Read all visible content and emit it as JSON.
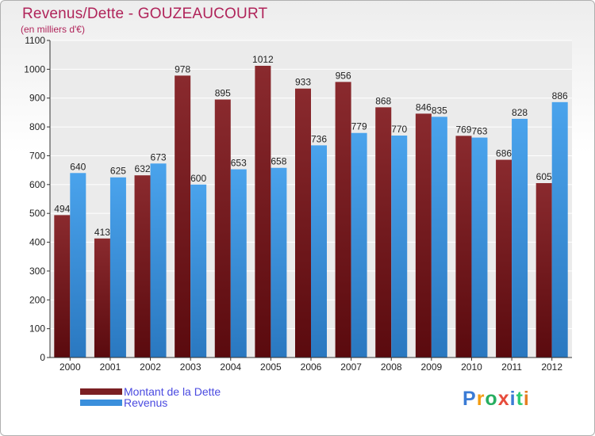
{
  "header": {
    "title": "Revenus/Dette - GOUZEAUCOURT",
    "subtitle": "(en milliers d'€)"
  },
  "legend": {
    "items": [
      {
        "label": "Montant de la Dette",
        "color": "#7a1f23"
      },
      {
        "label": "Revenus",
        "color": "#3a8fdc"
      }
    ]
  },
  "logo": {
    "text": "Proxiti",
    "colors": [
      "#3a7bd5",
      "#f39c12",
      "#27ae60",
      "#e74c3c",
      "#3a7bd5",
      "#2ecc71",
      "#e67e22"
    ]
  },
  "chart_data": {
    "type": "bar",
    "categories": [
      "2000",
      "2001",
      "2002",
      "2003",
      "2004",
      "2005",
      "2006",
      "2007",
      "2008",
      "2009",
      "2010",
      "2011",
      "2012"
    ],
    "series": [
      {
        "name": "Montant de la Dette",
        "color": "#7a1f23",
        "values": [
          494,
          413,
          632,
          978,
          895,
          1012,
          933,
          956,
          868,
          846,
          769,
          686,
          605
        ]
      },
      {
        "name": "Revenus",
        "color": "#3a8fdc",
        "values": [
          640,
          625,
          673,
          600,
          653,
          658,
          736,
          779,
          770,
          835,
          763,
          828,
          886
        ]
      }
    ],
    "yticks": [
      0,
      100,
      200,
      300,
      400,
      500,
      600,
      700,
      800,
      900,
      1000,
      1100
    ],
    "ylim": [
      0,
      1100
    ],
    "grid": true,
    "legend_position": "bottom-left"
  }
}
